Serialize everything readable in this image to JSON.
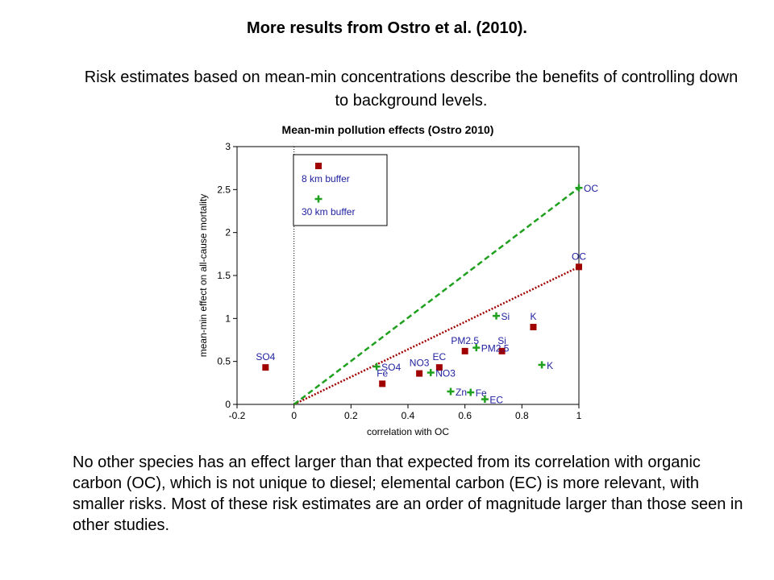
{
  "slide": {
    "title": "More results from Ostro et al. (2010).",
    "intro": "Risk estimates based on mean-min concentrations  describe the benefits of controlling down to background levels.",
    "conclusion": "No other species has an effect larger than that expected from its correlation with organic carbon (OC), which is not unique to diesel; elemental carbon (EC) is more relevant, with smaller risks.  Most of these risk estimates are an order of magnitude larger than those seen in other studies."
  },
  "chart_data": {
    "type": "scatter",
    "title": "Mean-min pollution effects (Ostro 2010)",
    "xlabel": "correlation with OC",
    "ylabel": "mean-min effect on all-cause mortality",
    "xlim": [
      -0.2,
      1.0
    ],
    "ylim": [
      0,
      3
    ],
    "xticks": [
      "-0.2",
      "0",
      "0.2",
      "0.4",
      "0.6",
      "0.8",
      "1"
    ],
    "yticks": [
      "0",
      "0.5",
      "1",
      "1.5",
      "2",
      "2.5",
      "3"
    ],
    "grid": false,
    "legend": "top-left",
    "colors": {
      "buffer8": "#a00000",
      "buffer30": "#1fa01f",
      "title": "#2040c0",
      "text": "#2020a0"
    },
    "series": [
      {
        "name": "8 km buffer",
        "marker": "square",
        "points": [
          {
            "label": "SO4",
            "x": -0.1,
            "y": 0.43
          },
          {
            "label": "Fe",
            "x": 0.31,
            "y": 0.24
          },
          {
            "label": "NO3",
            "x": 0.44,
            "y": 0.36
          },
          {
            "label": "EC",
            "x": 0.51,
            "y": 0.43
          },
          {
            "label": "PM2.5",
            "x": 0.6,
            "y": 0.62
          },
          {
            "label": "Si",
            "x": 0.73,
            "y": 0.62
          },
          {
            "label": "K",
            "x": 0.84,
            "y": 0.9
          },
          {
            "label": "OC",
            "x": 1.0,
            "y": 1.6
          }
        ]
      },
      {
        "name": "30 km buffer",
        "marker": "plus",
        "points": [
          {
            "label": "SO4",
            "x": 0.29,
            "y": 0.44
          },
          {
            "label": "NO3",
            "x": 0.48,
            "y": 0.37
          },
          {
            "label": "Zn",
            "x": 0.55,
            "y": 0.15
          },
          {
            "label": "Fe",
            "x": 0.62,
            "y": 0.14
          },
          {
            "label": "PM2.5",
            "x": 0.64,
            "y": 0.66
          },
          {
            "label": "EC",
            "x": 0.67,
            "y": 0.06
          },
          {
            "label": "Si",
            "x": 0.71,
            "y": 1.03
          },
          {
            "label": "K",
            "x": 0.87,
            "y": 0.46
          },
          {
            "label": "OC",
            "x": 1.0,
            "y": 2.52
          }
        ]
      }
    ],
    "reference_lines": [
      {
        "series": "8 km buffer",
        "style": "dotted",
        "from": [
          0,
          0
        ],
        "to": [
          1.0,
          1.6
        ]
      },
      {
        "series": "30 km buffer",
        "style": "dashed",
        "from": [
          0,
          0
        ],
        "to": [
          1.0,
          2.52
        ]
      }
    ]
  }
}
